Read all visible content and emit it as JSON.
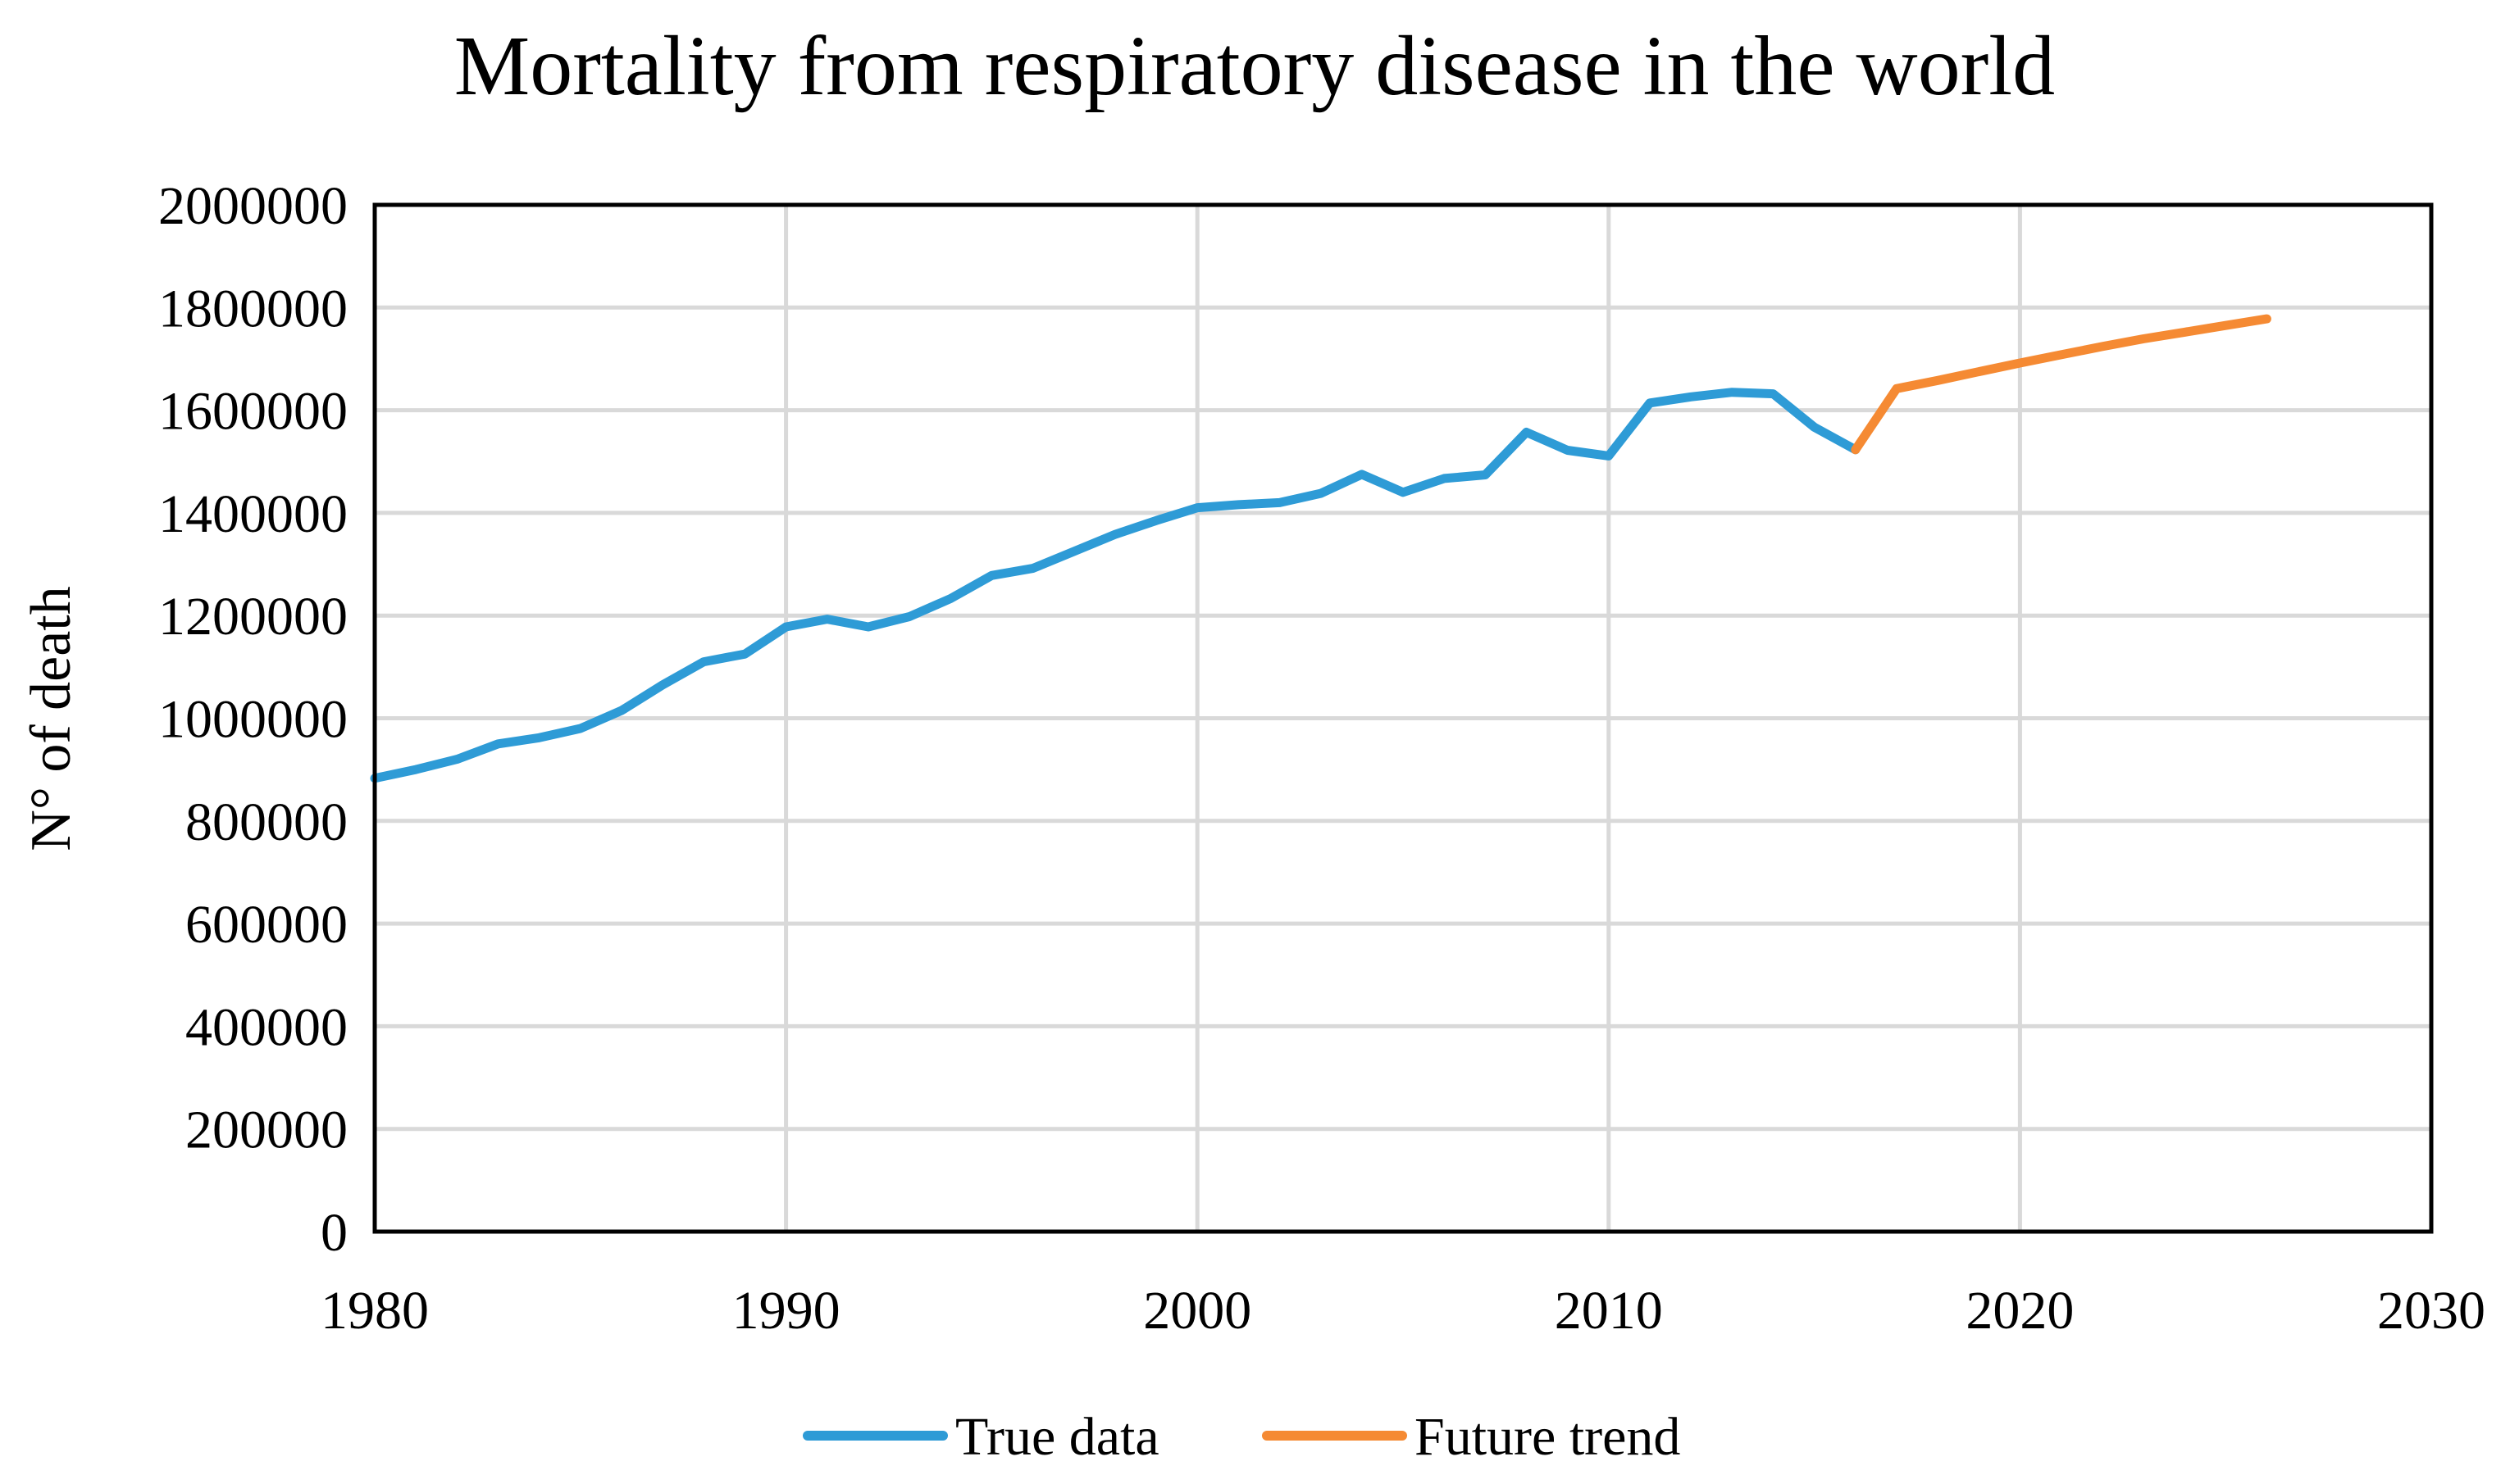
{
  "chart_data": {
    "type": "line",
    "title": "Mortality from respiratory disease in the world",
    "xlabel": "",
    "ylabel": "N° of death",
    "xlim": [
      1980,
      2030
    ],
    "ylim": [
      0,
      2000000
    ],
    "x_ticks": [
      1980,
      1990,
      2000,
      2010,
      2020,
      2030
    ],
    "y_ticks": [
      0,
      200000,
      400000,
      600000,
      800000,
      1000000,
      1200000,
      1400000,
      1600000,
      1800000,
      2000000
    ],
    "grid": true,
    "legend_position": "bottom",
    "series": [
      {
        "name": "True data",
        "color": "#2e9bd6",
        "x": [
          1980,
          1981,
          1982,
          1983,
          1984,
          1985,
          1986,
          1987,
          1988,
          1989,
          1990,
          1991,
          1992,
          1993,
          1994,
          1995,
          1996,
          1997,
          1998,
          1999,
          2000,
          2001,
          2002,
          2003,
          2004,
          2005,
          2006,
          2007,
          2008,
          2009,
          2010,
          2011,
          2012,
          2013,
          2014,
          2015,
          2016
        ],
        "values": [
          883000,
          900000,
          920000,
          950000,
          962000,
          980000,
          1015000,
          1065000,
          1110000,
          1125000,
          1178000,
          1193000,
          1178000,
          1198000,
          1233000,
          1278000,
          1292000,
          1325000,
          1358000,
          1385000,
          1410000,
          1416000,
          1420000,
          1438000,
          1475000,
          1440000,
          1467000,
          1474000,
          1557000,
          1522000,
          1511000,
          1614000,
          1626000,
          1635000,
          1632000,
          1567000,
          1523000
        ]
      },
      {
        "name": "Future trend",
        "color": "#f58a33",
        "x": [
          2016,
          2017,
          2018,
          2019,
          2020,
          2021,
          2022,
          2023,
          2024,
          2025,
          2026
        ],
        "values": [
          1523000,
          1642000,
          1658000,
          1675000,
          1692000,
          1708000,
          1724000,
          1739000,
          1752000,
          1765000,
          1778000
        ]
      }
    ]
  }
}
